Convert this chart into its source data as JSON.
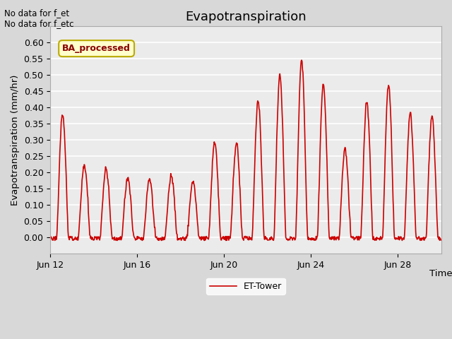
{
  "title": "Evapotranspiration",
  "xlabel": "Time",
  "ylabel": "Evapotranspiration (mm/hr)",
  "ylim": [
    -0.05,
    0.65
  ],
  "yticks": [
    0.0,
    0.05,
    0.1,
    0.15,
    0.2,
    0.25,
    0.3,
    0.35,
    0.4,
    0.45,
    0.5,
    0.55,
    0.6
  ],
  "line_color": "#cc0000",
  "line_width": 1.2,
  "legend_label": "ET-Tower",
  "annotation_text": "No data for f_et\nNo data for f_etc",
  "box_label": "BA_processed",
  "box_facecolor": "#ffffcc",
  "box_edgecolor": "#bbaa00",
  "box_textcolor": "#880000",
  "fig_bg_color": "#d8d8d8",
  "plot_bg_color": "#ebebeb",
  "title_fontsize": 13,
  "label_fontsize": 9.5,
  "tick_fontsize": 9,
  "xtick_labels": [
    "Jun 12",
    "Jun 16",
    "Jun 20",
    "Jun 24",
    "Jun 28"
  ],
  "xtick_positions": [
    0,
    4,
    8,
    12,
    16
  ],
  "num_days": 18,
  "seed": 42,
  "daily_peaks": [
    0.38,
    0.22,
    0.21,
    0.18,
    0.18,
    0.19,
    0.17,
    0.29,
    0.29,
    0.42,
    0.5,
    0.55,
    0.47,
    0.27,
    0.42,
    0.47,
    0.38,
    0.37
  ]
}
